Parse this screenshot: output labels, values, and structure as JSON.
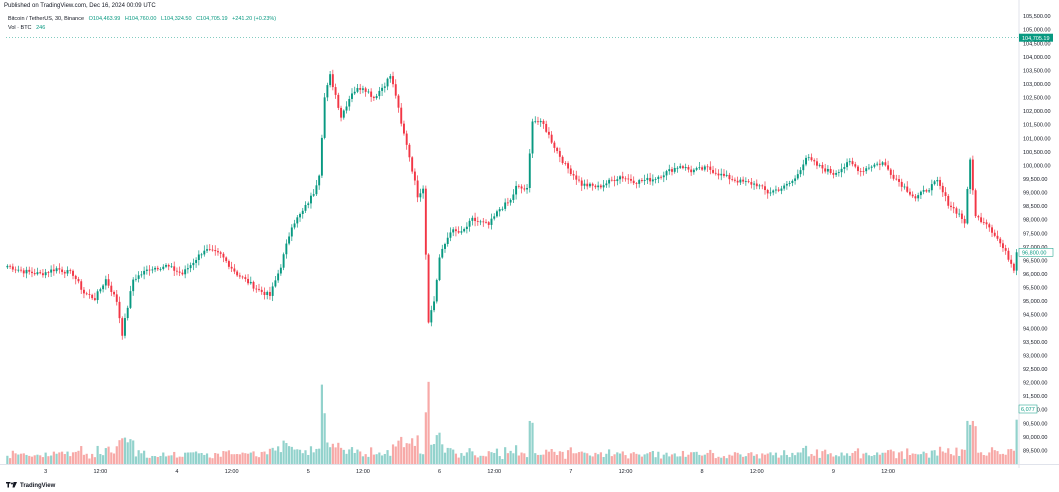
{
  "published_line": "Published on TradingView.com, Dec 16, 2024 00:09 UTC",
  "legend": {
    "symbol": "Bitcoin / TetherUS, 30, Binance",
    "open": "O104,463.99",
    "high": "H104,760.00",
    "low": "L104,324.50",
    "close": "C104,705.19",
    "change": "+241.20 (+0.23%)",
    "volume_label": "Vol · BTC",
    "volume_value": "246"
  },
  "footer": {
    "brand": "TradingView"
  },
  "colors": {
    "up": "#089981",
    "down": "#f23645",
    "up_vol": "#92d2cc",
    "down_vol": "#f7a9a7"
  },
  "chart_data": {
    "type": "candlestick",
    "ylim": [
      89000,
      105800
    ],
    "price_ticks": [
      "105,500.00",
      "105,000.00",
      "104,500.00",
      "104,000.00",
      "103,500.00",
      "103,000.00",
      "102,500.00",
      "102,000.00",
      "101,500.00",
      "101,000.00",
      "100,500.00",
      "100,000.00",
      "99,500.00",
      "99,000.00",
      "98,500.00",
      "98,000.00",
      "97,500.00",
      "97,000.00",
      "96,500.00",
      "96,000.00",
      "95,500.00",
      "95,000.00",
      "94,500.00",
      "94,000.00",
      "93,500.00",
      "93,000.00",
      "92,500.00",
      "92,000.00",
      "91,500.00",
      "91,000.00",
      "90,500.00",
      "90,000.00",
      "89,500.00"
    ],
    "price_tick_values": [
      105500,
      105000,
      104500,
      104000,
      103500,
      103000,
      102500,
      102000,
      101500,
      101000,
      100500,
      100000,
      99500,
      99000,
      98500,
      98000,
      97500,
      97000,
      96500,
      96000,
      95500,
      95000,
      94500,
      94000,
      93500,
      93000,
      92500,
      92000,
      91500,
      91000,
      90500,
      90000,
      89500
    ],
    "x_labels": [
      "3",
      "12:00",
      "4",
      "12:00",
      "5",
      "12:00",
      "6",
      "12:00",
      "7",
      "12:00",
      "8",
      "12:00",
      "9",
      "12:00"
    ],
    "x_label_bars": [
      14,
      34,
      62,
      82,
      110,
      130,
      158,
      178,
      206,
      226,
      254,
      274,
      302,
      322
    ],
    "last_price_label": "104,705.19",
    "last_price": 104705.19,
    "vol_price_label": "96,800.00",
    "vol_price": 96800,
    "vol_value_label": "6,077",
    "vol_max": 6500,
    "anchors": [
      [
        0,
        96300
      ],
      [
        6,
        96100
      ],
      [
        12,
        96000
      ],
      [
        18,
        96200
      ],
      [
        24,
        96000
      ],
      [
        28,
        95300
      ],
      [
        32,
        95100
      ],
      [
        36,
        95800
      ],
      [
        40,
        95000
      ],
      [
        42,
        93800
      ],
      [
        46,
        95800
      ],
      [
        52,
        96200
      ],
      [
        58,
        96300
      ],
      [
        64,
        96000
      ],
      [
        72,
        96900
      ],
      [
        78,
        96700
      ],
      [
        84,
        96000
      ],
      [
        92,
        95400
      ],
      [
        96,
        95200
      ],
      [
        100,
        96300
      ],
      [
        104,
        97800
      ],
      [
        108,
        98300
      ],
      [
        112,
        99000
      ],
      [
        114,
        99700
      ],
      [
        116,
        102500
      ],
      [
        118,
        103300
      ],
      [
        120,
        102600
      ],
      [
        122,
        101800
      ],
      [
        126,
        102700
      ],
      [
        130,
        102900
      ],
      [
        134,
        102500
      ],
      [
        138,
        103000
      ],
      [
        140,
        103300
      ],
      [
        142,
        102600
      ],
      [
        144,
        101500
      ],
      [
        146,
        100800
      ],
      [
        150,
        98900
      ],
      [
        152,
        99200
      ],
      [
        154,
        94300
      ],
      [
        156,
        95000
      ],
      [
        158,
        96600
      ],
      [
        162,
        97600
      ],
      [
        166,
        97500
      ],
      [
        170,
        98000
      ],
      [
        176,
        97800
      ],
      [
        180,
        98400
      ],
      [
        184,
        98700
      ],
      [
        186,
        99200
      ],
      [
        190,
        99100
      ],
      [
        192,
        101700
      ],
      [
        196,
        101500
      ],
      [
        200,
        100700
      ],
      [
        204,
        100000
      ],
      [
        210,
        99300
      ],
      [
        216,
        99200
      ],
      [
        224,
        99600
      ],
      [
        230,
        99400
      ],
      [
        236,
        99500
      ],
      [
        242,
        99800
      ],
      [
        246,
        100000
      ],
      [
        250,
        99800
      ],
      [
        256,
        99900
      ],
      [
        262,
        99600
      ],
      [
        268,
        99400
      ],
      [
        274,
        99300
      ],
      [
        278,
        99000
      ],
      [
        284,
        99200
      ],
      [
        288,
        99500
      ],
      [
        292,
        100300
      ],
      [
        296,
        100000
      ],
      [
        302,
        99700
      ],
      [
        308,
        100100
      ],
      [
        312,
        99800
      ],
      [
        316,
        100000
      ],
      [
        320,
        100100
      ],
      [
        324,
        99600
      ],
      [
        328,
        99200
      ],
      [
        332,
        98800
      ],
      [
        336,
        99100
      ],
      [
        340,
        99400
      ],
      [
        344,
        98600
      ],
      [
        348,
        98200
      ],
      [
        350,
        97900
      ],
      [
        352,
        100200
      ],
      [
        354,
        98100
      ],
      [
        358,
        97900
      ],
      [
        362,
        97300
      ],
      [
        366,
        96600
      ],
      [
        368,
        96200
      ],
      [
        369,
        96800
      ]
    ]
  }
}
